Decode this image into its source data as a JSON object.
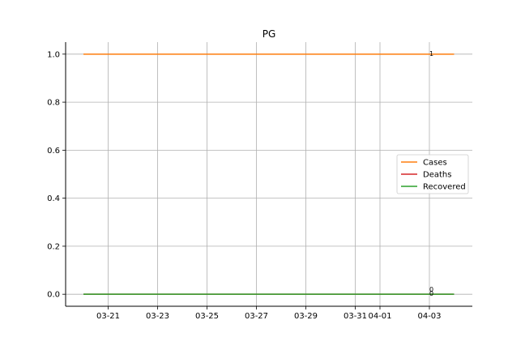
{
  "chart_data": {
    "type": "line",
    "title": "PG",
    "xlabel": "",
    "ylabel": "",
    "x": [
      "03-20",
      "03-21",
      "03-22",
      "03-23",
      "03-24",
      "03-25",
      "03-26",
      "03-27",
      "03-28",
      "03-29",
      "03-30",
      "03-31",
      "04-01",
      "04-02",
      "04-03",
      "04-04"
    ],
    "x_ticks": [
      "03-21",
      "03-23",
      "03-25",
      "03-27",
      "03-29",
      "03-31",
      "04-01",
      "04-03"
    ],
    "y_ticks": [
      "0.0",
      "0.2",
      "0.4",
      "0.6",
      "0.8",
      "1.0"
    ],
    "ylim": [
      -0.05,
      1.05
    ],
    "grid": true,
    "legend_position": "center-right",
    "series": [
      {
        "name": "Cases",
        "color": "#ff7f0e",
        "values": [
          1,
          1,
          1,
          1,
          1,
          1,
          1,
          1,
          1,
          1,
          1,
          1,
          1,
          1,
          1,
          1
        ],
        "end_label": "1"
      },
      {
        "name": "Deaths",
        "color": "#d62728",
        "values": [
          0,
          0,
          0,
          0,
          0,
          0,
          0,
          0,
          0,
          0,
          0,
          0,
          0,
          0,
          0,
          0
        ],
        "end_label": "0"
      },
      {
        "name": "Recovered",
        "color": "#2ca02c",
        "values": [
          0,
          0,
          0,
          0,
          0,
          0,
          0,
          0,
          0,
          0,
          0,
          0,
          0,
          0,
          0,
          0
        ],
        "end_label": "0"
      }
    ]
  }
}
